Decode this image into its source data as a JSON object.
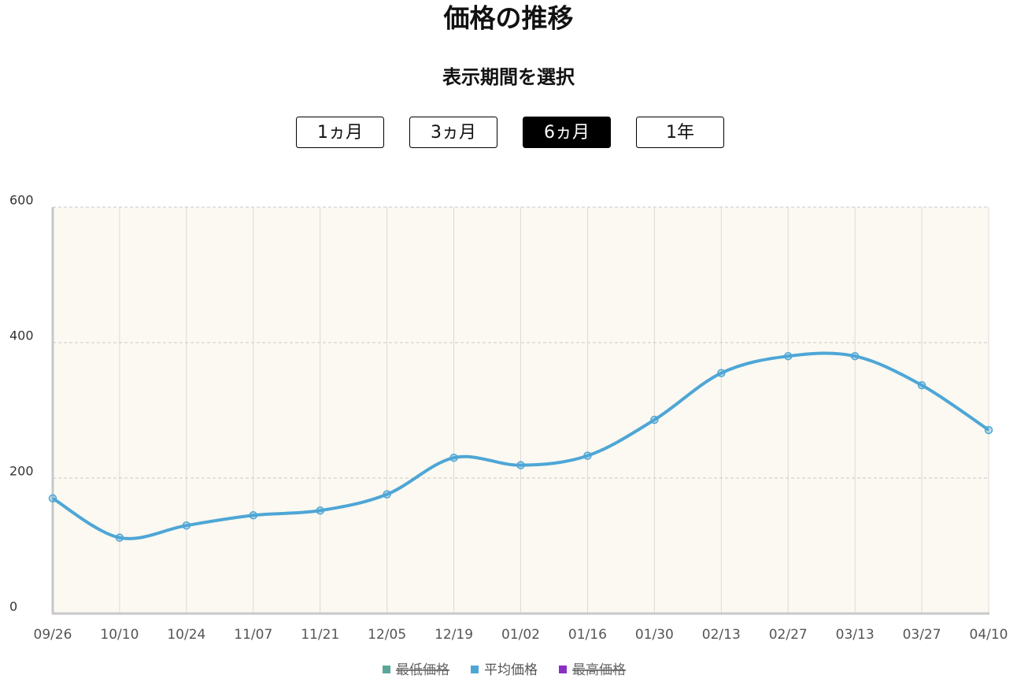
{
  "period_selector": {
    "label": "表示期間を選択",
    "options": [
      "1ヵ月",
      "3ヵ月",
      "6ヵ月",
      "1年"
    ],
    "selected": 2
  },
  "chart_data": {
    "type": "line",
    "title": "価格の推移",
    "categories": [
      "09/26",
      "10/10",
      "10/24",
      "11/07",
      "11/21",
      "12/05",
      "12/19",
      "01/02",
      "01/16",
      "01/30",
      "02/13",
      "02/27",
      "03/13",
      "03/27",
      "04/10"
    ],
    "series": [
      {
        "name": "最低価格",
        "color": "#5ba69a",
        "hidden": true
      },
      {
        "name": "平均価格",
        "color": "#4ea6d6",
        "values": [
          170,
          112,
          130,
          145,
          152,
          176,
          230,
          219,
          233,
          286,
          355,
          380,
          380,
          337,
          271
        ]
      },
      {
        "name": "最高価格",
        "color": "#8a2fc6",
        "hidden": true
      }
    ],
    "ylim": [
      0,
      600
    ],
    "yticks": [
      0,
      200,
      400,
      600
    ],
    "grid": true,
    "smooth": true,
    "legend": "bottom"
  }
}
